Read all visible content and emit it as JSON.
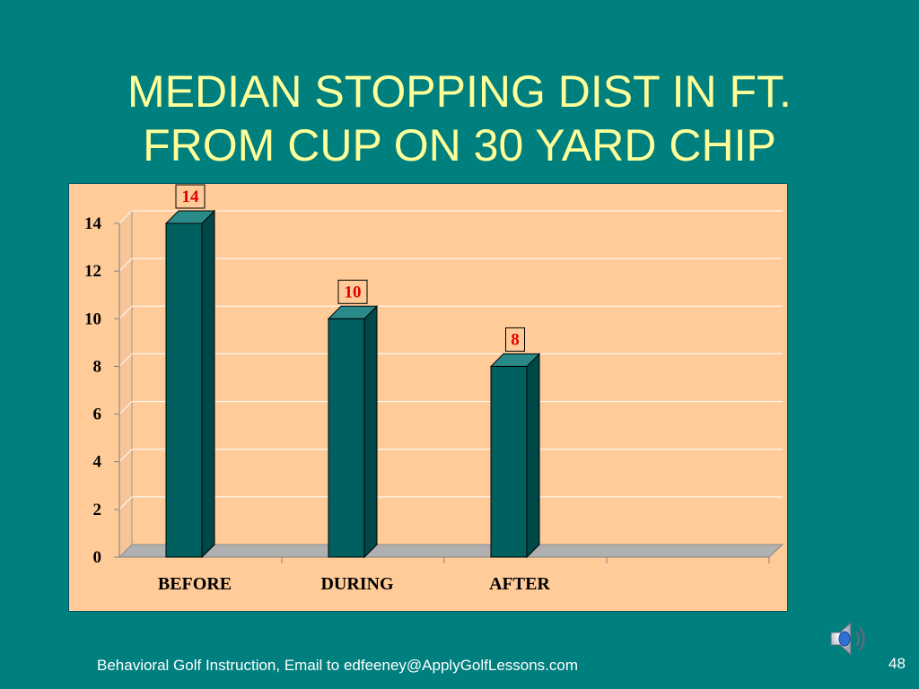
{
  "slide": {
    "title_line1": "MEDIAN STOPPING DIST IN FT.",
    "title_line2": "FROM CUP ON 30 YARD CHIP",
    "footer": "Behavioral Golf Instruction,  Email to edfeeney@ApplyGolfLessons.com",
    "page_number": "48",
    "speaker_icon": "speaker-icon"
  },
  "colors": {
    "background": "#007f7f",
    "title": "#ffff99",
    "plot_area": "#ffcc99",
    "bar_front": "#006060",
    "bar_side": "#004848",
    "bar_top": "#2a8a8a",
    "data_label": "#e00000"
  },
  "chart_data": {
    "type": "bar",
    "title": "",
    "xlabel": "",
    "ylabel": "",
    "categories": [
      "BEFORE",
      "DURING",
      "AFTER"
    ],
    "values": [
      14,
      10,
      8
    ],
    "data_labels": [
      "14",
      "10",
      "8"
    ],
    "ylim": [
      0,
      14
    ],
    "yticks": [
      "0",
      "2",
      "4",
      "6",
      "8",
      "10",
      "12",
      "14"
    ],
    "grid": true,
    "legend": "none",
    "three_d": true
  }
}
